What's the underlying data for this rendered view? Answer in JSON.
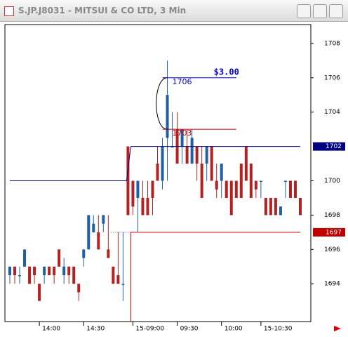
{
  "window_title": "S.JP.J8031 - MITSUI & CO LTD, 3 Min",
  "chart_data": {
    "type": "candlestick",
    "categories": [
      null,
      null,
      null,
      null,
      null,
      null,
      null,
      null,
      null,
      null,
      null,
      null,
      null,
      null,
      null,
      null,
      null,
      null,
      null,
      null,
      null,
      null,
      null,
      null,
      null,
      null,
      null,
      null,
      null,
      null,
      null,
      null,
      null,
      null,
      null,
      null,
      null,
      null,
      null,
      null,
      null,
      null,
      null,
      null,
      null,
      null,
      null,
      null,
      null,
      null,
      null,
      null,
      null,
      null,
      null,
      null,
      null,
      null,
      null,
      null
    ],
    "open": [
      1694.5,
      1695,
      1694.5,
      1695,
      1695,
      1695,
      1694,
      1694.5,
      1695,
      1695,
      1696,
      1694.5,
      1695,
      1695,
      1694,
      1695.5,
      1696,
      1697,
      1697,
      1697.5,
      1696,
      1695,
      1694.5,
      1694,
      1702,
      1700,
      1699,
      1699,
      1699,
      1700,
      1701,
      1700,
      1702.5,
      1702,
      1703,
      1702,
      1702,
      1701,
      1702,
      1701,
      1701,
      1702,
      1700,
      1700,
      1700,
      1700,
      1700,
      1701,
      1702,
      1701,
      1700,
      1700,
      1699,
      1699,
      1699,
      1698,
      1700,
      1700,
      1700,
      1699
    ],
    "high": [
      1695,
      1695,
      1695,
      1696,
      1695,
      1695,
      1694,
      1695,
      1695,
      1695,
      1696,
      1695.5,
      1695,
      1695,
      1694,
      1696,
      1698,
      1698,
      1698,
      1698,
      1698,
      1695,
      1697,
      1697,
      1702,
      1700,
      1700,
      1700,
      1700,
      1700,
      1702,
      1702.5,
      1707,
      1704,
      1704,
      1703,
      1703,
      1703,
      1702,
      1702,
      1702,
      1702,
      1701,
      1701,
      1700,
      1700,
      1700,
      1701,
      1702,
      1701,
      1700,
      1700,
      1699,
      1699,
      1699,
      1698.5,
      1700,
      1700,
      1700,
      1699
    ],
    "low": [
      1694,
      1694,
      1694,
      1695,
      1694,
      1694,
      1693,
      1694,
      1694.5,
      1694,
      1695,
      1694,
      1694,
      1694,
      1693,
      1695,
      1696,
      1697,
      1696,
      1697,
      1695.5,
      1694,
      1694,
      1693,
      1698,
      1698,
      1697,
      1698,
      1698,
      1698,
      1700,
      1699.5,
      1700,
      1702,
      1701,
      1701,
      1701,
      1701,
      1700,
      1699,
      1700,
      1700,
      1699,
      1699,
      1699,
      1698,
      1699,
      1699,
      1700,
      1699,
      1699,
      1699,
      1698,
      1698,
      1698,
      1698,
      1699,
      1699,
      1699,
      1698
    ],
    "close": [
      1695,
      1694.5,
      1694.5,
      1696,
      1694,
      1694.5,
      1693,
      1695,
      1694.5,
      1694.5,
      1695,
      1695,
      1694.5,
      1694,
      1693.5,
      1696,
      1698,
      1697.5,
      1696,
      1698,
      1695.5,
      1694,
      1694,
      1694,
      1698,
      1698.5,
      1700,
      1698,
      1698,
      1699,
      1700,
      1702,
      1705,
      1702,
      1701,
      1703,
      1701,
      1702.5,
      1701,
      1699,
      1702,
      1700,
      1699.5,
      1701,
      1699,
      1698,
      1699,
      1699,
      1700,
      1699,
      1699.5,
      1700,
      1698,
      1698,
      1698,
      1698.5,
      1700,
      1699,
      1699,
      1698
    ],
    "up_color": "#1f5fa8",
    "down_color": "#b22222",
    "xticks": [
      {
        "value": 6,
        "label": "14:00"
      },
      {
        "value": 15,
        "label": "14:30"
      },
      {
        "value": 25,
        "label": "15-09:00"
      },
      {
        "value": 34,
        "label": "09:30"
      },
      {
        "value": 43,
        "label": "10:00"
      },
      {
        "value": 51,
        "label": "15-10:30"
      }
    ],
    "ylim": [
      1691.8,
      1709.1
    ],
    "yticks": [
      1708,
      1706,
      1704,
      1700,
      1698,
      1696,
      1694
    ],
    "markers": [
      {
        "value": 1702,
        "previous": 1700,
        "color": "#000080"
      },
      {
        "value": 1697,
        "color": "#c00000"
      }
    ],
    "annotations": [
      {
        "value": 1706,
        "color": "#0000c0"
      },
      {
        "value": 1703,
        "color": "#c00000"
      }
    ],
    "range_label": "$3.00"
  }
}
